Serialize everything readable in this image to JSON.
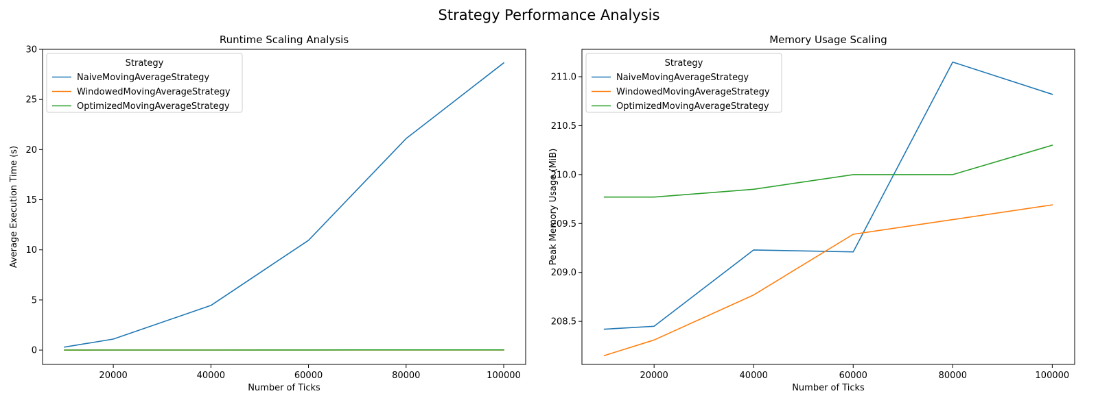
{
  "figure": {
    "suptitle": "Strategy Performance Analysis"
  },
  "chart_data": [
    {
      "type": "line",
      "title": "Runtime Scaling Analysis",
      "xlabel": "Number of Ticks",
      "ylabel": "Average Execution Time (s)",
      "xlim": [
        5500,
        104500
      ],
      "ylim": [
        -1.43,
        30.0
      ],
      "xticks": [
        "20000",
        "40000",
        "60000",
        "80000",
        "100000"
      ],
      "yticks": [
        "0",
        "5",
        "10",
        "15",
        "20",
        "25",
        "30"
      ],
      "legend": {
        "title": "Strategy",
        "placement": "upper-left"
      },
      "x": [
        10000,
        20000,
        40000,
        60000,
        80000,
        100000
      ],
      "series": [
        {
          "name": "NaiveMovingAverageStrategy",
          "color": "#1f77b4",
          "values": [
            0.3,
            1.1,
            4.45,
            10.95,
            21.1,
            28.65
          ]
        },
        {
          "name": "WindowedMovingAverageStrategy",
          "color": "#ff7f0e",
          "values": [
            0.001,
            0.002,
            0.004,
            0.006,
            0.008,
            0.01
          ]
        },
        {
          "name": "OptimizedMovingAverageStrategy",
          "color": "#2ca02c",
          "values": [
            0.002,
            0.004,
            0.008,
            0.012,
            0.016,
            0.02
          ]
        }
      ]
    },
    {
      "type": "line",
      "title": "Memory Usage Scaling",
      "xlabel": "Number of Ticks",
      "ylabel": "Peak Memory Usage (MiB)",
      "xlim": [
        5500,
        104500
      ],
      "ylim": [
        208.06,
        211.28
      ],
      "xticks": [
        "20000",
        "40000",
        "60000",
        "80000",
        "100000"
      ],
      "yticks": [
        "208.5",
        "209.0",
        "209.5",
        "210.0",
        "210.5",
        "211.0"
      ],
      "legend": {
        "title": "Strategy",
        "placement": "upper-left"
      },
      "x": [
        10000,
        20000,
        40000,
        60000,
        80000,
        100000
      ],
      "series": [
        {
          "name": "NaiveMovingAverageStrategy",
          "color": "#1f77b4",
          "values": [
            208.42,
            208.45,
            209.23,
            209.21,
            211.15,
            210.82
          ]
        },
        {
          "name": "WindowedMovingAverageStrategy",
          "color": "#ff7f0e",
          "values": [
            208.15,
            208.31,
            208.77,
            209.39,
            209.54,
            209.69
          ]
        },
        {
          "name": "OptimizedMovingAverageStrategy",
          "color": "#2ca02c",
          "values": [
            209.77,
            209.77,
            209.85,
            210.0,
            210.0,
            210.3
          ]
        }
      ]
    }
  ]
}
